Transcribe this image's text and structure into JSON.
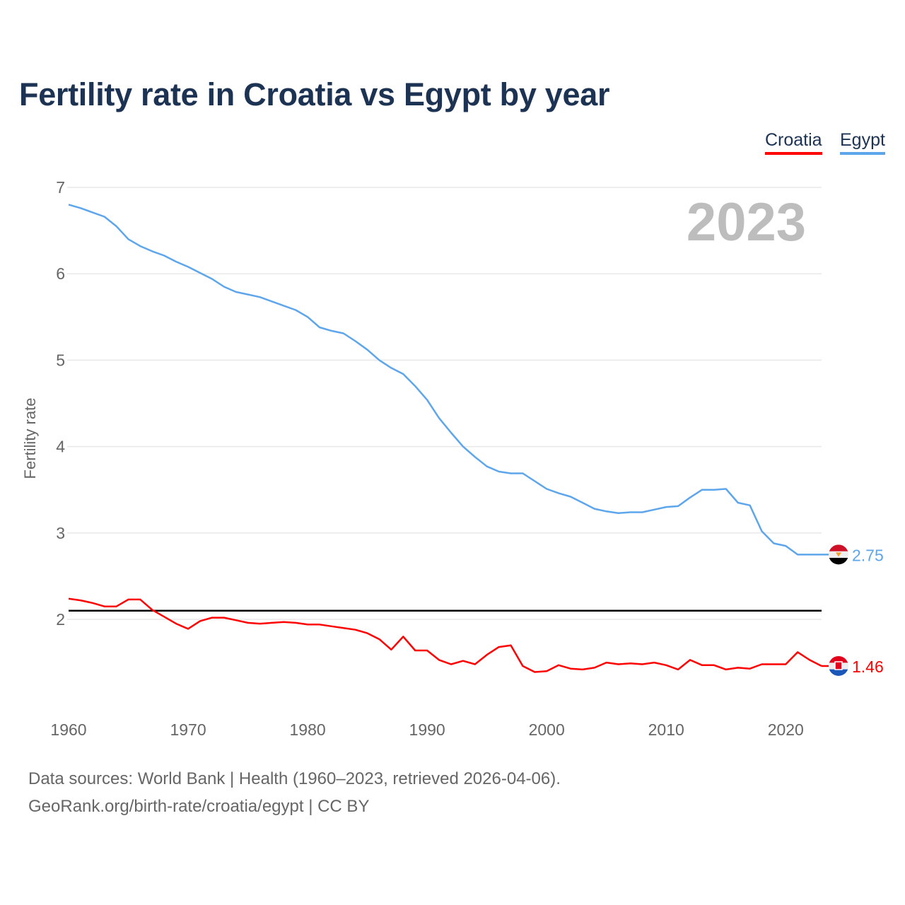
{
  "chart_data": {
    "type": "line",
    "title": "Fertility rate in Croatia vs Egypt by year",
    "xlabel": "",
    "ylabel": "Fertility rate",
    "year_label": "2023",
    "xlim": [
      1960,
      2023
    ],
    "ylim": [
      1.0,
      7.0
    ],
    "x_ticks": [
      "1960",
      "1970",
      "1980",
      "1990",
      "2000",
      "2010",
      "2020"
    ],
    "y_ticks": [
      "2",
      "3",
      "4",
      "5",
      "6",
      "7"
    ],
    "grid": true,
    "legend_placement": "top-right",
    "reference_line": 2.1,
    "x": [
      1960,
      1961,
      1962,
      1963,
      1964,
      1965,
      1966,
      1967,
      1968,
      1969,
      1970,
      1971,
      1972,
      1973,
      1974,
      1975,
      1976,
      1977,
      1978,
      1979,
      1980,
      1981,
      1982,
      1983,
      1984,
      1985,
      1986,
      1987,
      1988,
      1989,
      1990,
      1991,
      1992,
      1993,
      1994,
      1995,
      1996,
      1997,
      1998,
      1999,
      2000,
      2001,
      2002,
      2003,
      2004,
      2005,
      2006,
      2007,
      2008,
      2009,
      2010,
      2011,
      2012,
      2013,
      2014,
      2015,
      2016,
      2017,
      2018,
      2019,
      2020,
      2021,
      2022,
      2023
    ],
    "series": [
      {
        "name": "Croatia",
        "color": "#ff0000",
        "end_label": "1.46",
        "values": [
          2.24,
          2.22,
          2.19,
          2.15,
          2.15,
          2.23,
          2.23,
          2.11,
          2.03,
          1.95,
          1.89,
          1.98,
          2.02,
          2.02,
          1.99,
          1.96,
          1.95,
          1.96,
          1.97,
          1.96,
          1.94,
          1.94,
          1.92,
          1.9,
          1.88,
          1.84,
          1.77,
          1.65,
          1.8,
          1.64,
          1.64,
          1.53,
          1.48,
          1.52,
          1.48,
          1.59,
          1.68,
          1.7,
          1.46,
          1.39,
          1.4,
          1.47,
          1.43,
          1.42,
          1.44,
          1.5,
          1.48,
          1.49,
          1.48,
          1.5,
          1.47,
          1.42,
          1.53,
          1.47,
          1.47,
          1.42,
          1.44,
          1.43,
          1.48,
          1.48,
          1.48,
          1.62,
          1.53,
          1.46
        ]
      },
      {
        "name": "Egypt",
        "color": "#5ea6ec",
        "end_label": "2.75",
        "values": [
          6.8,
          6.76,
          6.71,
          6.66,
          6.55,
          6.4,
          6.32,
          6.26,
          6.21,
          6.14,
          6.08,
          6.01,
          5.94,
          5.85,
          5.79,
          5.76,
          5.73,
          5.68,
          5.63,
          5.58,
          5.5,
          5.38,
          5.34,
          5.31,
          5.22,
          5.12,
          5.0,
          4.91,
          4.84,
          4.7,
          4.54,
          4.33,
          4.16,
          4.0,
          3.88,
          3.77,
          3.71,
          3.69,
          3.69,
          3.6,
          3.51,
          3.46,
          3.42,
          3.35,
          3.28,
          3.25,
          3.23,
          3.24,
          3.24,
          3.27,
          3.3,
          3.31,
          3.41,
          3.5,
          3.5,
          3.51,
          3.35,
          3.32,
          3.02,
          2.88,
          2.85,
          2.75,
          2.75,
          2.75
        ]
      }
    ]
  },
  "footer": {
    "source_line": "Data sources: World Bank | Health (1960–2023, retrieved 2026-04-06).",
    "credit_line": "GeoRank.org/birth-rate/croatia/egypt | CC BY"
  }
}
